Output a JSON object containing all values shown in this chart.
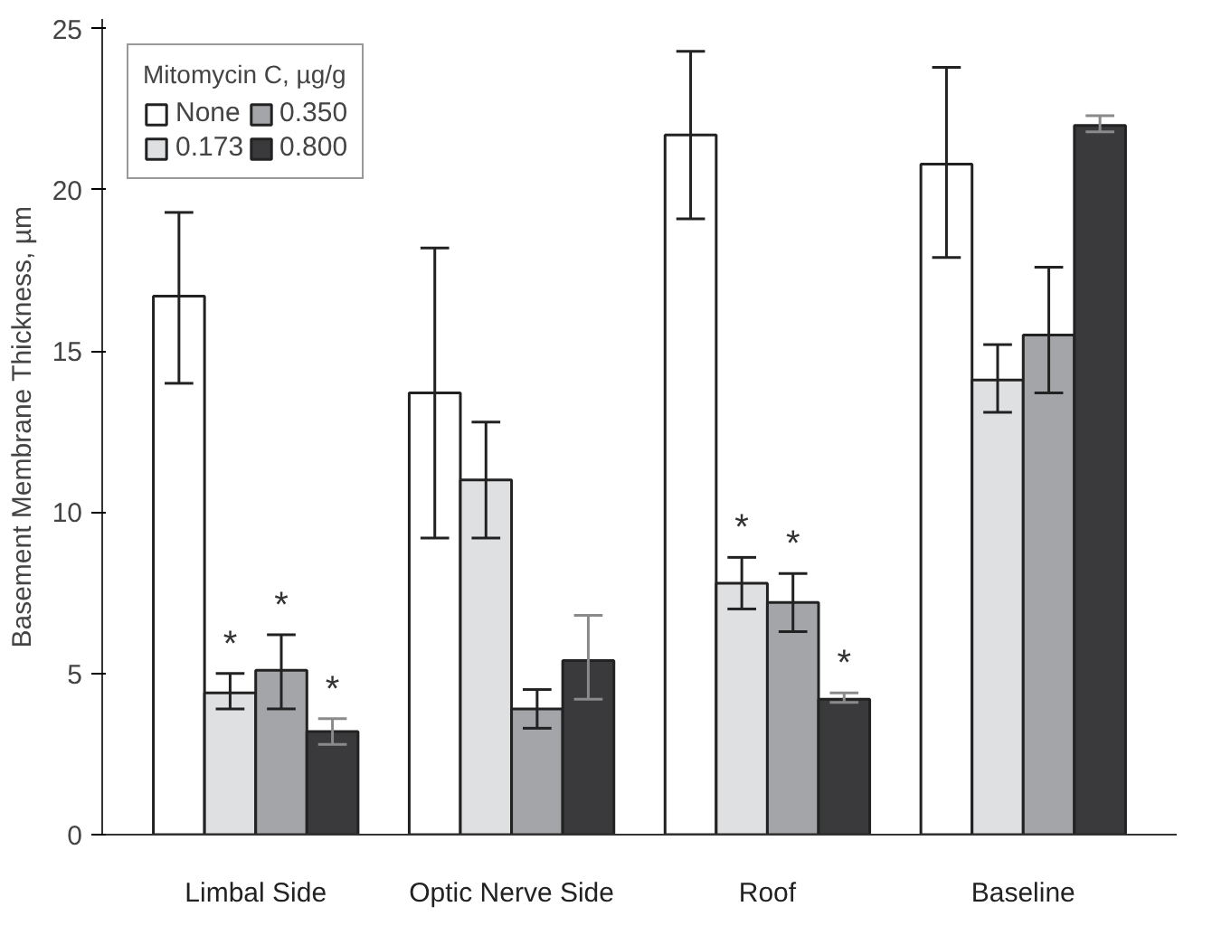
{
  "chart_data": {
    "type": "bar",
    "ylabel": "Basement Membrane Thickness, µm",
    "legend_title": "Mitomycin C, µg/g",
    "categories": [
      "Limbal Side",
      "Optic Nerve Side",
      "Roof",
      "Baseline"
    ],
    "series": [
      {
        "name": "None",
        "color": "#ffffff",
        "values": [
          16.7,
          13.7,
          21.7,
          20.8
        ],
        "errors": [
          [
            14.0,
            19.3
          ],
          [
            9.2,
            18.2
          ],
          [
            19.1,
            24.3
          ],
          [
            17.9,
            23.8
          ]
        ]
      },
      {
        "name": "0.173",
        "color": "#dfe0e2",
        "values": [
          4.4,
          11.0,
          7.8,
          14.1
        ],
        "errors": [
          [
            3.9,
            5.0
          ],
          [
            9.2,
            12.8
          ],
          [
            7.0,
            8.6
          ],
          [
            13.1,
            15.2
          ]
        ]
      },
      {
        "name": "0.350",
        "color": "#a3a5a8",
        "values": [
          5.1,
          3.9,
          7.2,
          15.5
        ],
        "errors": [
          [
            3.9,
            6.2
          ],
          [
            3.3,
            4.5
          ],
          [
            6.3,
            8.1
          ],
          [
            13.7,
            17.6
          ]
        ]
      },
      {
        "name": "0.800",
        "color": "#3a3a3c",
        "values": [
          3.2,
          5.4,
          4.2,
          22.0
        ],
        "errors": [
          [
            2.8,
            3.6
          ],
          [
            4.2,
            6.8
          ],
          [
            4.1,
            4.4
          ],
          [
            21.8,
            22.3
          ]
        ]
      }
    ],
    "annotations": [
      {
        "text": "*",
        "x": "Limbal Side",
        "y": 4.4
      },
      {
        "text": "*",
        "x": "Limbal Side",
        "y": 5.1
      },
      {
        "text": "*",
        "x": "Limbal Side",
        "y": 3.2
      },
      {
        "text": "*",
        "x": "Roof",
        "y": 7.8
      },
      {
        "text": "*",
        "x": "Roof",
        "y": 7.2
      },
      {
        "text": "*",
        "x": "Roof",
        "y": 4.2
      }
    ],
    "ylim": [
      0,
      25.3
    ],
    "yticks": [
      0,
      5,
      10,
      15,
      20,
      25
    ],
    "grid": false,
    "legend": "top left"
  }
}
